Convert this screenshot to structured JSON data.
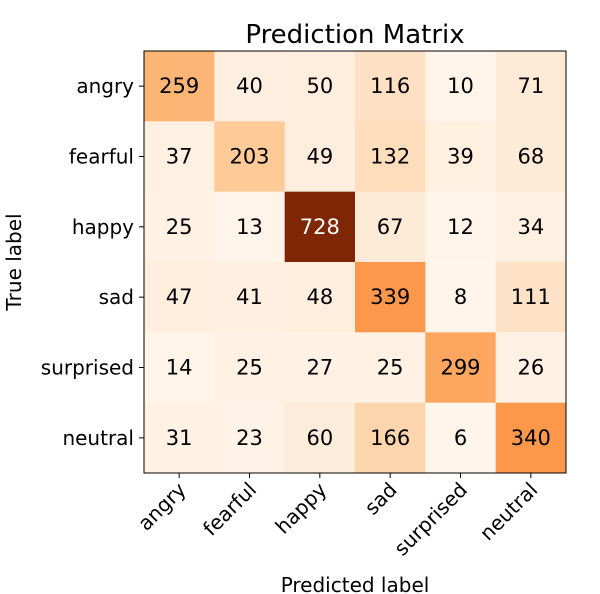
{
  "chart_data": {
    "type": "heatmap",
    "title": "Prediction Matrix",
    "xlabel": "Predicted label",
    "ylabel": "True label",
    "x_categories": [
      "angry",
      "fearful",
      "happy",
      "sad",
      "surprised",
      "neutral"
    ],
    "y_categories": [
      "angry",
      "fearful",
      "happy",
      "sad",
      "surprised",
      "neutral"
    ],
    "values": [
      [
        259,
        40,
        50,
        116,
        10,
        71
      ],
      [
        37,
        203,
        49,
        132,
        39,
        68
      ],
      [
        25,
        13,
        728,
        67,
        12,
        34
      ],
      [
        47,
        41,
        48,
        339,
        8,
        111
      ],
      [
        14,
        25,
        27,
        25,
        299,
        26
      ],
      [
        31,
        23,
        60,
        166,
        6,
        340
      ]
    ],
    "colormap": "Oranges",
    "grid": false,
    "colorbar": false
  }
}
